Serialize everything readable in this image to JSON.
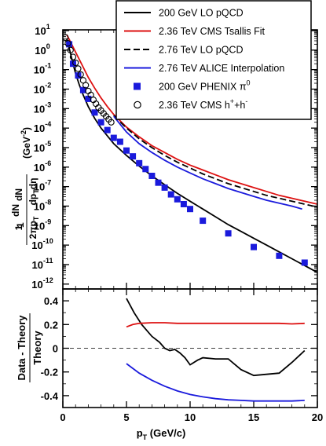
{
  "chart_data": [
    {
      "panel": "top",
      "type": "line",
      "xlim": [
        0,
        20
      ],
      "ylog": true,
      "ylim_exp": [
        -12,
        1
      ],
      "y_tick_labels": [
        "10",
        "10",
        "10",
        "10",
        "10",
        "10",
        "10",
        "10",
        "10",
        "10",
        "10",
        "10",
        "10",
        "10"
      ],
      "y_tick_exponents": [
        "1",
        "0",
        "-1",
        "-2",
        "-3",
        "-4",
        "-5",
        "-6",
        "-7",
        "-8",
        "-9",
        "-10",
        "-11",
        "-12"
      ],
      "y_tick_values_exp": [
        1,
        0,
        -1,
        -2,
        -3,
        -4,
        -5,
        -6,
        -7,
        -8,
        -9,
        -10,
        -11,
        -12
      ],
      "ylabel_fraction": {
        "numerator": "1",
        "denominator": "2πp",
        "sub": "T",
        "dnum": "dN",
        "dden": "dp",
        "dden_sub": "T",
        "dden_tail": "dη"
      },
      "yunit": "(GeV",
      "yunit_exp": "-2",
      "yunit_close": ")",
      "legend_placement": "top-right",
      "legend": [
        {
          "label": "200 GeV LO pQCD",
          "style": "solid",
          "color": "#000000"
        },
        {
          "label": "2.36 TeV CMS Tsallis Fit",
          "style": "solid",
          "color": "#dd1111"
        },
        {
          "label": "2.76 TeV LO pQCD",
          "style": "dashed",
          "color": "#000000"
        },
        {
          "label": "2.76 TeV ALICE Interpolation",
          "style": "solid",
          "color": "#1a1adc"
        },
        {
          "label": "200 GeV PHENIX π",
          "sup": "0",
          "style": "square",
          "color": "#1a1adc"
        },
        {
          "label": "2.36 TeV CMS h",
          "sup": "+",
          "label2": "+h",
          "sup2": "-",
          "style": "circle",
          "color": "#000000"
        }
      ],
      "series": [
        {
          "name": "200 GeV LO pQCD",
          "color": "#000000",
          "dash": false,
          "x": [
            0.3,
            0.5,
            0.8,
            1.0,
            1.3,
            1.6,
            2.0,
            2.5,
            3.0,
            3.5,
            4.0,
            5.0,
            6.0,
            7.0,
            8.0,
            9.0,
            10.0,
            11.0,
            12.0,
            13.0,
            14.0,
            15.0,
            16.0,
            17.0,
            18.0,
            19.0,
            20.0
          ],
          "y_exp": [
            0.6,
            0.1,
            -0.7,
            -1.2,
            -1.8,
            -2.3,
            -2.9,
            -3.5,
            -4.0,
            -4.4,
            -4.8,
            -5.4,
            -5.95,
            -6.45,
            -6.9,
            -7.35,
            -7.75,
            -8.15,
            -8.55,
            -8.95,
            -9.3,
            -9.65,
            -10.0,
            -10.35,
            -10.7,
            -11.05,
            -11.4
          ]
        },
        {
          "name": "2.36 TeV CMS Tsallis Fit",
          "color": "#dd1111",
          "dash": false,
          "x": [
            0.3,
            0.5,
            1.0,
            1.5,
            2.0,
            2.5,
            3.0,
            3.5,
            4.0,
            5.0,
            6.0,
            7.0,
            8.0,
            9.0,
            10.0,
            11.0,
            12.0,
            13.0,
            14.0,
            15.0,
            16.0,
            17.0,
            18.0,
            19.0,
            20.0
          ],
          "y_exp": [
            0.8,
            0.55,
            -0.1,
            -0.75,
            -1.4,
            -1.95,
            -2.45,
            -2.9,
            -3.3,
            -3.95,
            -4.45,
            -4.9,
            -5.25,
            -5.6,
            -5.9,
            -6.15,
            -6.4,
            -6.65,
            -6.85,
            -7.05,
            -7.25,
            -7.45,
            -7.6,
            -7.75,
            -7.9
          ]
        },
        {
          "name": "2.76 TeV LO pQCD",
          "color": "#000000",
          "dash": true,
          "x": [
            4.0,
            5.0,
            6.0,
            7.0,
            8.0,
            9.0,
            10.0,
            11.0,
            12.0,
            13.0,
            14.0,
            15.0,
            16.0,
            17.0,
            18.0,
            19.0,
            20.0
          ],
          "y_exp": [
            -3.35,
            -4.0,
            -4.55,
            -5.0,
            -5.4,
            -5.75,
            -6.05,
            -6.35,
            -6.6,
            -6.85,
            -7.05,
            -7.25,
            -7.45,
            -7.6,
            -7.75,
            -7.9,
            -8.05
          ]
        },
        {
          "name": "2.76 TeV ALICE Interpolation",
          "color": "#1a1adc",
          "dash": false,
          "x": [
            4.0,
            5.0,
            6.0,
            7.0,
            8.0,
            9.0,
            10.0,
            11.0,
            12.0,
            13.0,
            14.0,
            15.0,
            16.0,
            17.0,
            18.0,
            18.8
          ],
          "y_exp": [
            -3.4,
            -4.2,
            -4.8,
            -5.25,
            -5.65,
            -6.0,
            -6.3,
            -6.6,
            -6.85,
            -7.1,
            -7.3,
            -7.5,
            -7.7,
            -7.85,
            -8.0,
            -8.15
          ]
        }
      ],
      "points": [
        {
          "name": "200 GeV PHENIX π0",
          "marker": "square",
          "color": "#1a1adc",
          "x": [
            0.5,
            0.8,
            1.2,
            1.6,
            2.0,
            2.5,
            3.0,
            3.5,
            4.0,
            4.5,
            5.0,
            5.5,
            6.0,
            6.5,
            7.0,
            7.5,
            8.0,
            8.5,
            9.0,
            9.5,
            10.0,
            11.0,
            13.0,
            15.0,
            17.0,
            19.0
          ],
          "y_exp": [
            0.3,
            -0.7,
            -1.3,
            -2.05,
            -2.5,
            -3.2,
            -3.7,
            -4.1,
            -4.5,
            -4.7,
            -5.15,
            -5.45,
            -5.8,
            -6.1,
            -6.45,
            -6.8,
            -7.05,
            -7.4,
            -7.65,
            -7.9,
            -8.15,
            -8.75,
            -9.4,
            -10.1,
            -10.55,
            -10.9
          ]
        },
        {
          "name": "2.36 TeV CMS h++h-",
          "marker": "circle",
          "color": "#000000",
          "x": [
            0.2,
            0.4,
            0.6,
            0.8,
            1.0,
            1.2,
            1.4,
            1.6,
            1.8,
            2.0,
            2.2,
            2.4,
            2.6,
            2.8,
            3.0,
            3.2,
            3.4,
            3.6,
            3.8
          ],
          "y_exp": [
            0.65,
            0.35,
            0.0,
            -0.35,
            -0.65,
            -0.95,
            -1.25,
            -1.55,
            -1.8,
            -2.1,
            -2.3,
            -2.55,
            -2.75,
            -2.95,
            -3.1,
            -3.25,
            -3.4,
            -3.55,
            -3.7
          ]
        }
      ]
    },
    {
      "panel": "bottom",
      "type": "line",
      "xlim": [
        0,
        20
      ],
      "ylim": [
        -0.5,
        0.5
      ],
      "x_ticks": [
        0,
        5,
        10,
        15,
        20
      ],
      "x_tick_labels": [
        "0",
        "5",
        "10",
        "15",
        "20"
      ],
      "y_ticks": [
        -0.4,
        -0.2,
        0,
        0.2,
        0.4
      ],
      "y_tick_labels": [
        "-0.4",
        "-0.2",
        "0",
        "0.2",
        "0.4"
      ],
      "ylabel_num": "Data - Theory",
      "ylabel_den": "Theory",
      "xlabel": "p",
      "xlabel_sub": "T",
      "xlabel_tail": " (GeV/c)",
      "reference_line": 0,
      "series": [
        {
          "name": "black",
          "color": "#000000",
          "x": [
            5.0,
            5.6,
            6.2,
            7.0,
            7.6,
            8.0,
            8.4,
            8.8,
            9.2,
            9.6,
            10.0,
            10.6,
            11.0,
            12.0,
            13.0,
            14.0,
            15.0,
            16.0,
            17.0,
            18.0,
            19.0
          ],
          "y": [
            0.42,
            0.3,
            0.2,
            0.1,
            0.05,
            0.0,
            -0.02,
            -0.01,
            -0.04,
            -0.08,
            -0.14,
            -0.1,
            -0.08,
            -0.09,
            -0.09,
            -0.18,
            -0.23,
            -0.22,
            -0.21,
            -0.12,
            -0.02
          ]
        },
        {
          "name": "red",
          "color": "#dd1111",
          "x": [
            5.0,
            5.5,
            6.0,
            7.0,
            8.0,
            9.0,
            10.0,
            11.0,
            12.0,
            13.0,
            14.0,
            15.0,
            16.0,
            17.0,
            18.0,
            19.0
          ],
          "y": [
            0.18,
            0.2,
            0.21,
            0.215,
            0.215,
            0.21,
            0.21,
            0.21,
            0.21,
            0.21,
            0.21,
            0.21,
            0.21,
            0.21,
            0.205,
            0.21
          ]
        },
        {
          "name": "blue",
          "color": "#1a1adc",
          "x": [
            5.0,
            6.0,
            7.0,
            8.0,
            9.0,
            10.0,
            11.0,
            12.0,
            13.0,
            14.0,
            15.0,
            16.0,
            17.0,
            18.0,
            19.0
          ],
          "y": [
            -0.13,
            -0.21,
            -0.27,
            -0.32,
            -0.36,
            -0.39,
            -0.41,
            -0.425,
            -0.435,
            -0.44,
            -0.445,
            -0.445,
            -0.445,
            -0.445,
            -0.44
          ]
        }
      ]
    }
  ]
}
